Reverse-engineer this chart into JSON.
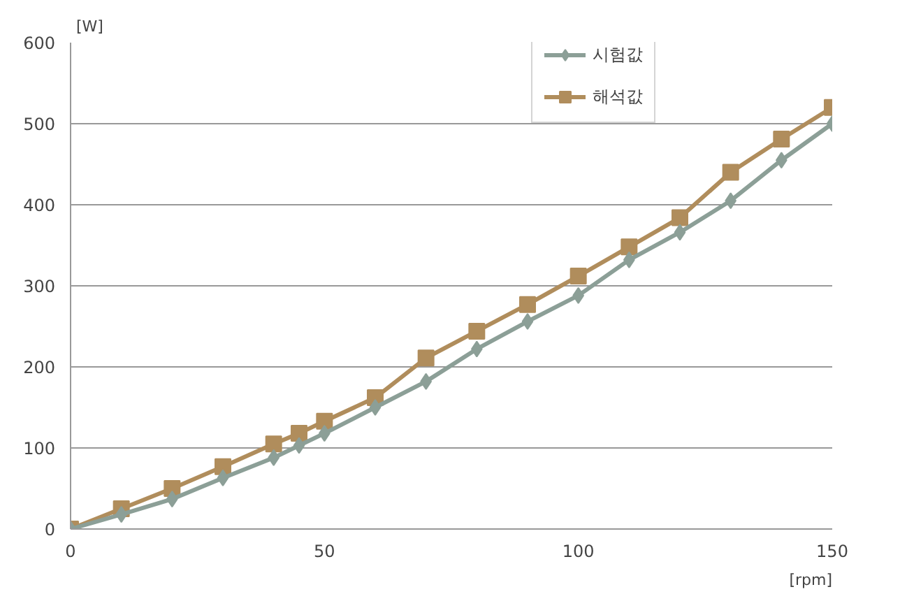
{
  "chart_data": {
    "type": "line",
    "xlabel": "[rpm]",
    "ylabel": "[W]",
    "x": [
      0,
      10,
      20,
      30,
      40,
      45,
      50,
      60,
      70,
      80,
      90,
      100,
      110,
      120,
      130,
      140,
      150
    ],
    "series": [
      {
        "name": "시험값",
        "color": "#8c9f97",
        "marker": "diamond",
        "values": [
          0,
          18,
          37,
          63,
          88,
          103,
          118,
          150,
          182,
          222,
          256,
          288,
          332,
          366,
          405,
          455,
          500
        ]
      },
      {
        "name": "해석값",
        "color": "#b08d5c",
        "marker": "square",
        "values": [
          0,
          25,
          50,
          77,
          105,
          118,
          133,
          162,
          211,
          244,
          277,
          312,
          348,
          384,
          440,
          481,
          520
        ]
      }
    ],
    "xlim": [
      0,
      150
    ],
    "ylim": [
      0,
      600
    ],
    "xticks": [
      0,
      50,
      100,
      150
    ],
    "yticks": [
      0,
      100,
      200,
      300,
      400,
      500,
      600
    ],
    "grid": "y",
    "legend": "top right",
    "line_style": "solid"
  }
}
